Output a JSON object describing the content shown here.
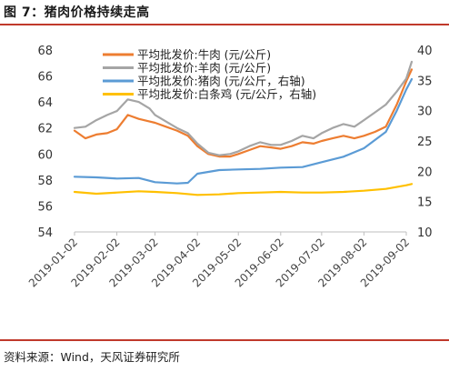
{
  "figure": {
    "title": "图 7：猪肉价格持续走高",
    "source": "资料来源：Wind，天风证券研究所"
  },
  "chart_data": {
    "type": "line",
    "title": "",
    "xlabel": "",
    "ylabel": "",
    "x_ticks": [
      "2019-01-02",
      "2019-02-02",
      "2019-03-02",
      "2019-04-02",
      "2019-05-02",
      "2019-06-02",
      "2019-07-02",
      "2019-08-02",
      "2019-09-02"
    ],
    "x_range": [
      "2019-01-02",
      "2019-09-02"
    ],
    "y_left": {
      "range": [
        54,
        68
      ],
      "ticks": [
        54,
        56,
        58,
        60,
        62,
        64,
        66,
        68
      ]
    },
    "y_right": {
      "range": [
        10,
        40
      ],
      "ticks": [
        10,
        15,
        20,
        25,
        30,
        35,
        40
      ]
    },
    "grid": false,
    "legend_placement": "top-center",
    "series": [
      {
        "name": "平均批发价:牛肉  (元/公斤)",
        "axis": "left",
        "color": "#ed7d31",
        "points": [
          [
            "2019-01-02",
            61.8
          ],
          [
            "2019-01-10",
            61.2
          ],
          [
            "2019-01-18",
            61.5
          ],
          [
            "2019-01-26",
            61.6
          ],
          [
            "2019-02-02",
            61.9
          ],
          [
            "2019-02-10",
            63.0
          ],
          [
            "2019-02-18",
            62.7
          ],
          [
            "2019-02-26",
            62.5
          ],
          [
            "2019-03-02",
            62.4
          ],
          [
            "2019-03-10",
            62.1
          ],
          [
            "2019-03-18",
            61.8
          ],
          [
            "2019-03-26",
            61.4
          ],
          [
            "2019-04-02",
            60.6
          ],
          [
            "2019-04-10",
            60.0
          ],
          [
            "2019-04-18",
            59.8
          ],
          [
            "2019-04-26",
            59.8
          ],
          [
            "2019-05-02",
            60.0
          ],
          [
            "2019-05-10",
            60.3
          ],
          [
            "2019-05-18",
            60.6
          ],
          [
            "2019-05-26",
            60.5
          ],
          [
            "2019-06-02",
            60.4
          ],
          [
            "2019-06-10",
            60.6
          ],
          [
            "2019-06-18",
            60.9
          ],
          [
            "2019-06-26",
            60.8
          ],
          [
            "2019-07-02",
            61.0
          ],
          [
            "2019-07-10",
            61.2
          ],
          [
            "2019-07-18",
            61.4
          ],
          [
            "2019-07-26",
            61.2
          ],
          [
            "2019-08-02",
            61.4
          ],
          [
            "2019-08-10",
            61.7
          ],
          [
            "2019-08-18",
            62.1
          ],
          [
            "2019-08-26",
            63.8
          ],
          [
            "2019-09-02",
            65.6
          ],
          [
            "2019-09-06",
            66.5
          ]
        ]
      },
      {
        "name": "平均批发价:羊肉  (元/公斤)",
        "axis": "left",
        "color": "#a5a5a5",
        "points": [
          [
            "2019-01-02",
            62.0
          ],
          [
            "2019-01-10",
            62.1
          ],
          [
            "2019-01-18",
            62.6
          ],
          [
            "2019-01-26",
            63.0
          ],
          [
            "2019-02-02",
            63.3
          ],
          [
            "2019-02-10",
            64.2
          ],
          [
            "2019-02-18",
            64.0
          ],
          [
            "2019-02-26",
            63.5
          ],
          [
            "2019-03-02",
            63.0
          ],
          [
            "2019-03-10",
            62.5
          ],
          [
            "2019-03-18",
            62.0
          ],
          [
            "2019-03-26",
            61.6
          ],
          [
            "2019-04-02",
            60.8
          ],
          [
            "2019-04-10",
            60.1
          ],
          [
            "2019-04-18",
            59.9
          ],
          [
            "2019-04-26",
            60.0
          ],
          [
            "2019-05-02",
            60.2
          ],
          [
            "2019-05-10",
            60.6
          ],
          [
            "2019-05-18",
            60.9
          ],
          [
            "2019-05-26",
            60.7
          ],
          [
            "2019-06-02",
            60.7
          ],
          [
            "2019-06-10",
            61.0
          ],
          [
            "2019-06-18",
            61.4
          ],
          [
            "2019-06-26",
            61.2
          ],
          [
            "2019-07-02",
            61.6
          ],
          [
            "2019-07-10",
            62.0
          ],
          [
            "2019-07-18",
            62.3
          ],
          [
            "2019-07-26",
            62.1
          ],
          [
            "2019-08-02",
            62.6
          ],
          [
            "2019-08-10",
            63.2
          ],
          [
            "2019-08-18",
            63.8
          ],
          [
            "2019-08-26",
            64.8
          ],
          [
            "2019-09-02",
            65.8
          ],
          [
            "2019-09-06",
            67.1
          ]
        ]
      },
      {
        "name": "平均批发价:猪肉  (元/公斤，右轴)",
        "axis": "right",
        "color": "#5b9bd5",
        "points": [
          [
            "2019-01-02",
            19.1
          ],
          [
            "2019-01-18",
            19.0
          ],
          [
            "2019-02-02",
            18.8
          ],
          [
            "2019-02-18",
            18.9
          ],
          [
            "2019-03-02",
            18.2
          ],
          [
            "2019-03-18",
            18.0
          ],
          [
            "2019-03-26",
            18.1
          ],
          [
            "2019-04-02",
            19.6
          ],
          [
            "2019-04-18",
            20.2
          ],
          [
            "2019-05-02",
            20.3
          ],
          [
            "2019-05-18",
            20.4
          ],
          [
            "2019-06-02",
            20.6
          ],
          [
            "2019-06-18",
            20.7
          ],
          [
            "2019-07-02",
            21.5
          ],
          [
            "2019-07-18",
            22.4
          ],
          [
            "2019-08-02",
            23.8
          ],
          [
            "2019-08-18",
            26.5
          ],
          [
            "2019-08-26",
            30.0
          ],
          [
            "2019-09-02",
            33.5
          ],
          [
            "2019-09-06",
            35.2
          ]
        ]
      },
      {
        "name": "平均批发价:白条鸡  (元/公斤，右轴)",
        "axis": "right",
        "color": "#ffc000",
        "points": [
          [
            "2019-01-02",
            16.6
          ],
          [
            "2019-01-18",
            16.3
          ],
          [
            "2019-02-02",
            16.5
          ],
          [
            "2019-02-18",
            16.7
          ],
          [
            "2019-03-02",
            16.6
          ],
          [
            "2019-03-18",
            16.4
          ],
          [
            "2019-04-02",
            16.1
          ],
          [
            "2019-04-18",
            16.2
          ],
          [
            "2019-05-02",
            16.4
          ],
          [
            "2019-05-18",
            16.5
          ],
          [
            "2019-06-02",
            16.6
          ],
          [
            "2019-06-18",
            16.5
          ],
          [
            "2019-07-02",
            16.5
          ],
          [
            "2019-07-18",
            16.6
          ],
          [
            "2019-08-02",
            16.8
          ],
          [
            "2019-08-18",
            17.1
          ],
          [
            "2019-09-02",
            17.7
          ],
          [
            "2019-09-06",
            17.9
          ]
        ]
      }
    ]
  }
}
